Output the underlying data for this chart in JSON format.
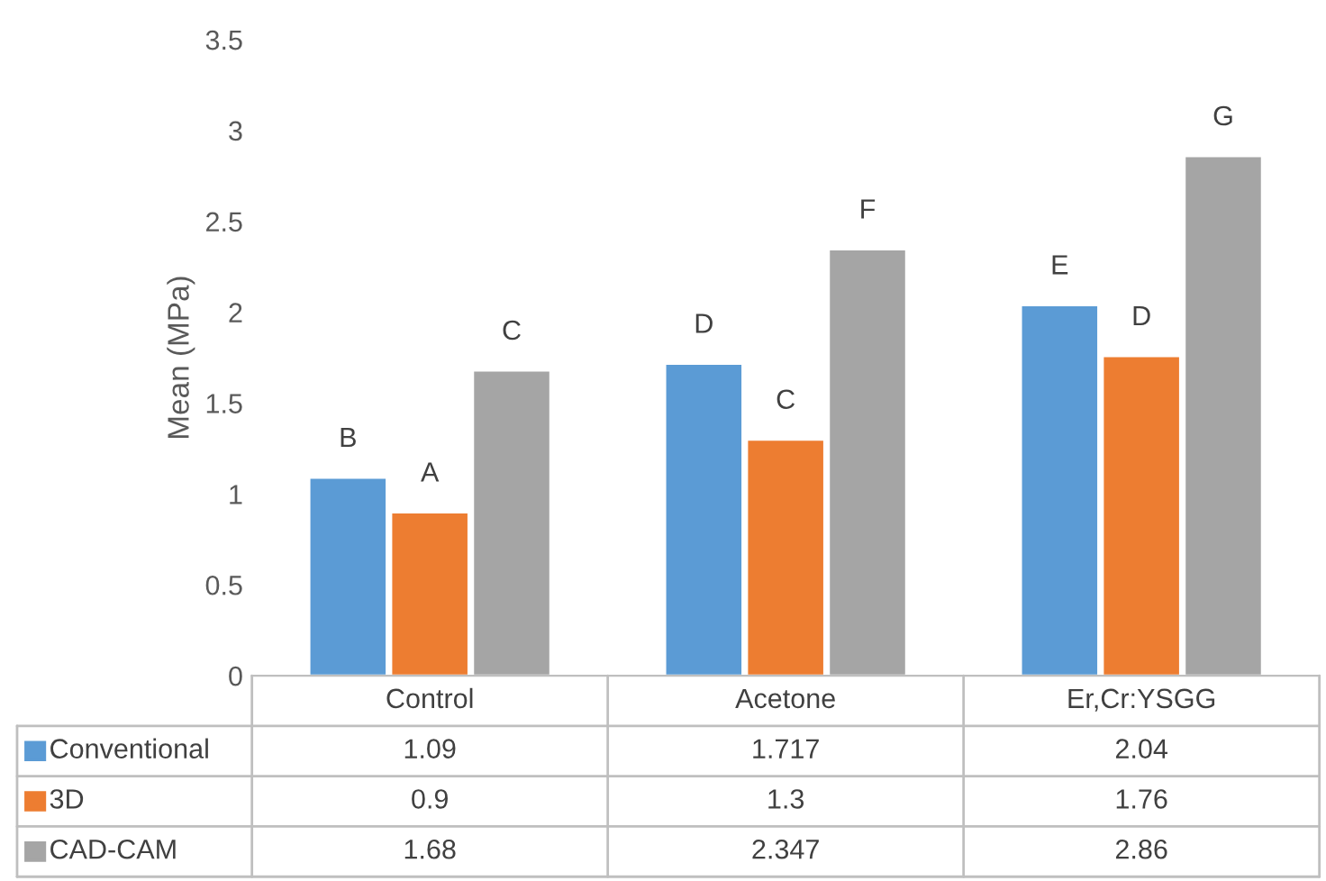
{
  "chart_data": {
    "type": "bar",
    "ylabel": "Mean (MPa)",
    "categories": [
      "Control",
      "Acetone",
      "Er,Cr:YSGG"
    ],
    "series": [
      {
        "name": "Conventional",
        "color": "#5b9bd5",
        "values": [
          1.09,
          1.717,
          2.04
        ]
      },
      {
        "name": "3D",
        "color": "#ed7d31",
        "values": [
          0.9,
          1.3,
          1.76
        ]
      },
      {
        "name": "CAD-CAM",
        "color": "#a5a5a5",
        "values": [
          1.68,
          2.347,
          2.86
        ]
      }
    ],
    "ylim": [
      0,
      3.5
    ],
    "yticks": [
      0,
      0.5,
      1,
      1.5,
      2,
      2.5,
      3,
      3.5
    ],
    "data_labels": true,
    "grid": false,
    "legend": "bottom",
    "annotations": [
      "B",
      "A",
      "C",
      "D",
      "C",
      "F",
      "E",
      "D",
      "G"
    ]
  }
}
